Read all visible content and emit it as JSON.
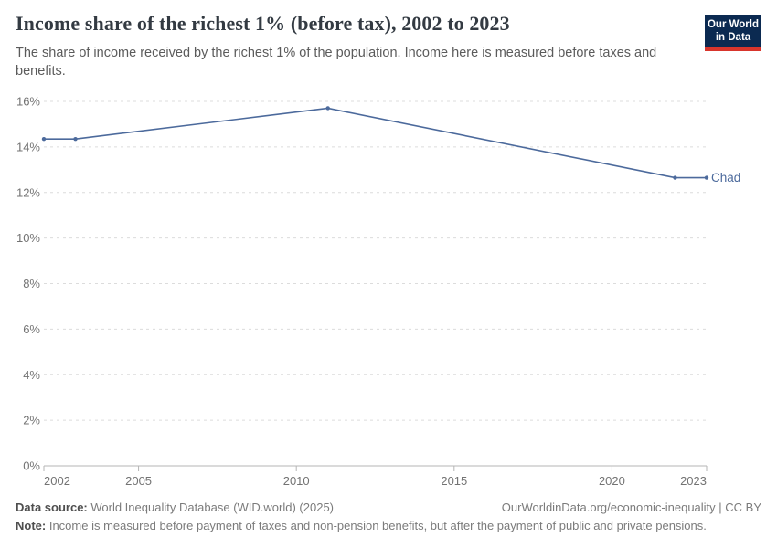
{
  "header": {
    "title": "Income share of the richest 1% (before tax), 2002 to 2023",
    "subtitle": "The share of income received by the richest 1% of the population. Income here is measured before taxes and benefits.",
    "logo": {
      "line1": "Our World",
      "line2": "in Data",
      "bg_color": "#0b2a51",
      "accent_color": "#d8352c"
    }
  },
  "chart_data": {
    "type": "line",
    "title": "Income share of the richest 1% (before tax), 2002 to 2023",
    "unit": "%",
    "xlim": [
      2002,
      2023
    ],
    "ylim": [
      0,
      16
    ],
    "x_ticks": [
      2002,
      2005,
      2010,
      2015,
      2020,
      2023
    ],
    "y_ticks": [
      0,
      2,
      4,
      6,
      8,
      10,
      12,
      14,
      16
    ],
    "y_tick_suffix": "%",
    "grid": "dashed-horizontal",
    "legend_position": "end-of-line-label",
    "series": [
      {
        "name": "Chad",
        "color": "#4c6a9c",
        "x": [
          2002,
          2003,
          2011,
          2022,
          2023
        ],
        "values": [
          14.35,
          14.35,
          15.7,
          12.65,
          12.65
        ]
      }
    ],
    "colors": {
      "gridline": "#dcdcdc",
      "axis": "#b5b5b5",
      "tick_label": "#737373"
    }
  },
  "footer": {
    "source_label": "Data source:",
    "source_text": " World Inequality Database (WID.world) (2025)",
    "rights": "OurWorldinData.org/economic-inequality | CC BY",
    "note_label": "Note:",
    "note_text": " Income is measured before payment of taxes and non-pension benefits, but after the payment of public and private pensions."
  }
}
